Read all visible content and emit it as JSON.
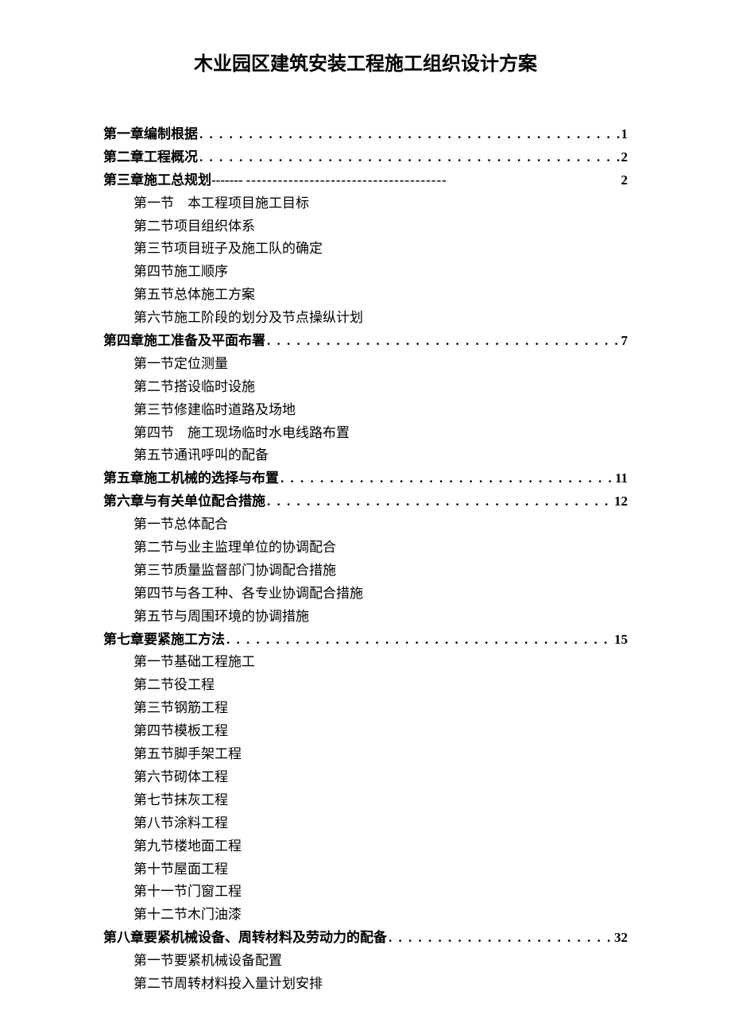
{
  "title": "木业园区建筑安装工程施工组织设计方案",
  "styling": {
    "body_width": 920,
    "body_height": 1301,
    "background_color": "#ffffff",
    "text_color": "#000000",
    "title_fontsize": 24,
    "body_fontsize": 17,
    "line_height": 1.7,
    "section_indent": 38,
    "title_font": "SimHei",
    "body_font": "SimSun"
  },
  "chapters": [
    {
      "label": "第一章编制根据",
      "page": "1",
      "separator": "dots",
      "sections": []
    },
    {
      "label": "第二章工程概况",
      "page": "2",
      "separator": "dots",
      "sections": []
    },
    {
      "label": "第三章施工总规划",
      "page": "2",
      "separator": "dashes",
      "dash_left": "-------",
      "dash_right": " --------------------------------------",
      "sections": [
        "第一节　本工程项目施工目标",
        "第二节项目组织体系",
        "第三节项目班子及施工队的确定",
        "第四节施工顺序",
        "第五节总体施工方案",
        "第六节施工阶段的划分及节点操纵计划"
      ]
    },
    {
      "label": "第四章施工准备及平面布署",
      "page": "7",
      "separator": "dots",
      "sections": [
        "第一节定位测量",
        "第二节搭设临时设施",
        "第三节修建临时道路及场地",
        "第四节　施工现场临时水电线路布置",
        "第五节通讯呼叫的配备"
      ]
    },
    {
      "label": "第五章施工机械的选择与布置",
      "page": "11",
      "separator": "dots",
      "sections": []
    },
    {
      "label": "第六章与有关单位配合措施",
      "page": "12",
      "separator": "dots",
      "sections": [
        "第一节总体配合",
        "第二节与业主监理单位的协调配合",
        "第三节质量监督部门协调配合措施",
        "第四节与各工种、各专业协调配合措施",
        "第五节与周围环境的协调措施"
      ]
    },
    {
      "label": "第七章要紧施工方法",
      "page": "15",
      "separator": "dots",
      "sections": [
        "第一节基础工程施工",
        "第二节役工程",
        "第三节钢筋工程",
        "第四节模板工程",
        "第五节脚手架工程",
        "第六节砌体工程",
        "第七节抹灰工程",
        "第八节涂料工程",
        "第九节楼地面工程",
        "第十节屋面工程",
        "第十一节门窗工程",
        "第十二节木门油漆"
      ]
    },
    {
      "label": "第八章要紧机械设备、周转材料及劳动力的配备",
      "page": "32",
      "separator": "dots",
      "sections": [
        "第一节要紧机械设备配置",
        "第二节周转材料投入量计划安排"
      ]
    }
  ]
}
